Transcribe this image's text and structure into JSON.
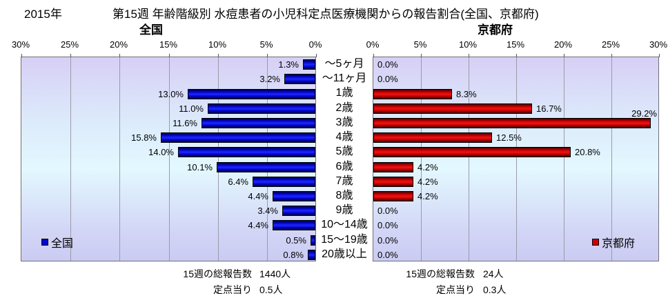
{
  "page": {
    "year": "2015年",
    "title": "第15週 年齢階級別 水痘患者の小児科定点医療機関からの報告割合(全国、京都府)"
  },
  "categories": [
    "〜5ヶ月",
    "〜11ヶ月",
    "1歳",
    "2歳",
    "3歳",
    "4歳",
    "5歳",
    "6歳",
    "7歳",
    "8歳",
    "9歳",
    "10〜14歳",
    "15〜19歳",
    "20歳以上"
  ],
  "chart_data": [
    {
      "type": "bar",
      "orientation": "horizontal",
      "direction": "right-to-left",
      "title": "全国",
      "legend": "全国",
      "bar_color": "#0008cc",
      "categories": [
        "〜5ヶ月",
        "〜11ヶ月",
        "1歳",
        "2歳",
        "3歳",
        "4歳",
        "5歳",
        "6歳",
        "7歳",
        "8歳",
        "9歳",
        "10〜14歳",
        "15〜19歳",
        "20歳以上"
      ],
      "values": [
        1.3,
        3.2,
        13.0,
        11.0,
        11.6,
        15.8,
        14.0,
        10.1,
        6.4,
        4.4,
        3.4,
        4.4,
        0.5,
        0.8
      ],
      "value_labels": [
        "1.3%",
        "3.2%",
        "13.0%",
        "11.0%",
        "11.6%",
        "15.8%",
        "14.0%",
        "10.1%",
        "6.4%",
        "4.4%",
        "3.4%",
        "4.4%",
        "0.5%",
        "0.8%"
      ],
      "axis_ticks": [
        "30%",
        "25%",
        "20%",
        "15%",
        "10%",
        "5%",
        "0%"
      ],
      "xlim": [
        0,
        30
      ],
      "axis_position": "top",
      "grid": "vertical",
      "footer": {
        "total_label": "15週の総報告数",
        "total_value": "1440人",
        "per_label": "定点当り",
        "per_value": "0.5人"
      }
    },
    {
      "type": "bar",
      "orientation": "horizontal",
      "direction": "left-to-right",
      "title": "京都府",
      "legend": "京都府",
      "bar_color": "#cc0000",
      "categories": [
        "〜5ヶ月",
        "〜11ヶ月",
        "1歳",
        "2歳",
        "3歳",
        "4歳",
        "5歳",
        "6歳",
        "7歳",
        "8歳",
        "9歳",
        "10〜14歳",
        "15〜19歳",
        "20歳以上"
      ],
      "values": [
        0.0,
        0.0,
        8.3,
        16.7,
        29.2,
        12.5,
        20.8,
        4.2,
        4.2,
        4.2,
        0.0,
        0.0,
        0.0,
        0.0
      ],
      "value_labels": [
        "0.0%",
        "0.0%",
        "8.3%",
        "16.7%",
        "29.2%",
        "12.5%",
        "20.8%",
        "4.2%",
        "4.2%",
        "4.2%",
        "0.0%",
        "0.0%",
        "0.0%",
        "0.0%"
      ],
      "axis_ticks": [
        "0%",
        "5%",
        "10%",
        "15%",
        "20%",
        "25%",
        "30%"
      ],
      "xlim": [
        0,
        30
      ],
      "axis_position": "top",
      "grid": "vertical",
      "footer": {
        "total_label": "15週の総報告数",
        "total_value": "24人",
        "per_label": "定点当り",
        "per_value": "0.3人"
      }
    }
  ]
}
